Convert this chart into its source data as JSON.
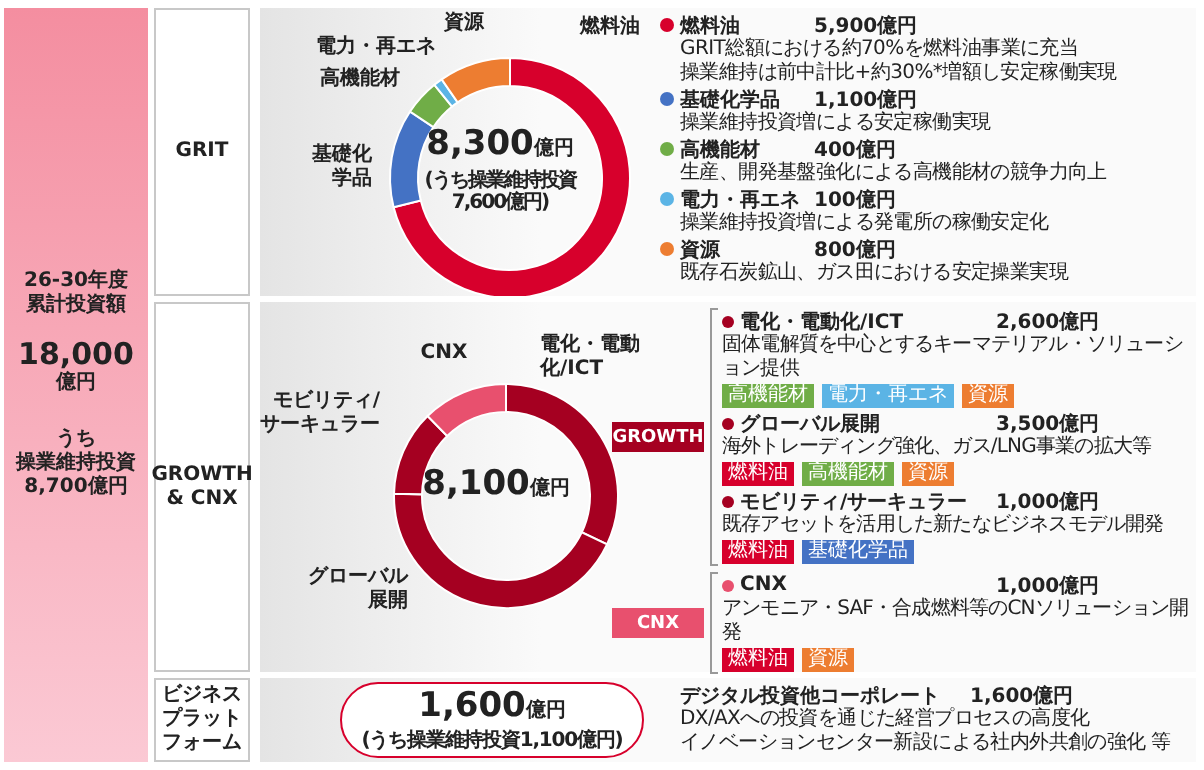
{
  "chart_data": [
    {
      "type": "donut",
      "title": "GRIT",
      "legend": "right",
      "categories": [
        "燃料油",
        "基礎化学品",
        "高機能材",
        "電力・再エネ",
        "資源"
      ],
      "values": [
        5900,
        1100,
        400,
        100,
        800
      ],
      "colors": [
        "#d7002c",
        "#4472c4",
        "#70ad47",
        "#5bb4e5",
        "#ed7d31"
      ],
      "value_labels": [
        "5,900億円",
        "1,100億円",
        "400億円",
        "100億円",
        "800億円"
      ],
      "annotations": [
        "8,300億円",
        "(うち操業維持投資",
        "7,600億円)",
        "GRIT総額における約70%を燃料油事業に充当",
        "操業維持は前中計比+約30%*増額し安定稼働実現",
        "操業維持投資増による安定稼働実現",
        "生産、開発基盤強化による高機能材の競争力向上",
        "操業維持投資増による発電所の稼働安定化",
        "既存石炭鉱山、ガス田における安定操業実現"
      ]
    },
    {
      "type": "donut",
      "title": "GROWTH & CNX",
      "legend": "right",
      "categories": [
        "電化・電動化/ICT",
        "グローバル展開",
        "モビリティ/サーキュラー",
        "CNX"
      ],
      "values": [
        2600,
        3500,
        1000,
        1000
      ],
      "colors": [
        "#a50021",
        "#a50021",
        "#a50021",
        "#e8506e"
      ],
      "value_labels": [
        "2,600億円",
        "3,500億円",
        "1,000億円",
        "1,000億円"
      ],
      "annotations": [
        "8,100億円",
        "GROWTH",
        "CNX",
        "固体電解質を中心とするキーマテリアル・ソリューション提供",
        "海外トレーディング強化、ガス/LNG事業の拡大等",
        "既存アセットを活用した新たなビジネスモデル開発",
        "アンモニア・SAF・合成燃料等のCNソリューション開発",
        "高機能材",
        "電力・再エネ",
        "資源",
        "燃料油",
        "高機能材",
        "資源",
        "燃料油",
        "基礎化学品",
        "燃料油",
        "資源"
      ]
    },
    {
      "type": "other",
      "title": "ビジネスプラットフォーム",
      "annotations": [
        "26-30年度",
        "累計投資額",
        "18,000",
        "億円",
        "うち",
        "操業維持投資",
        "8,700億円",
        "1,600億円",
        "(うち操業維持投資1,100億円)",
        "デジタル投資他コーポレート",
        "1,600億円",
        "DX/AXへの投資を通じた経営プロセスの高度化",
        "イノベーションセンター新設による社内外共創の強化 等"
      ]
    }
  ]
}
